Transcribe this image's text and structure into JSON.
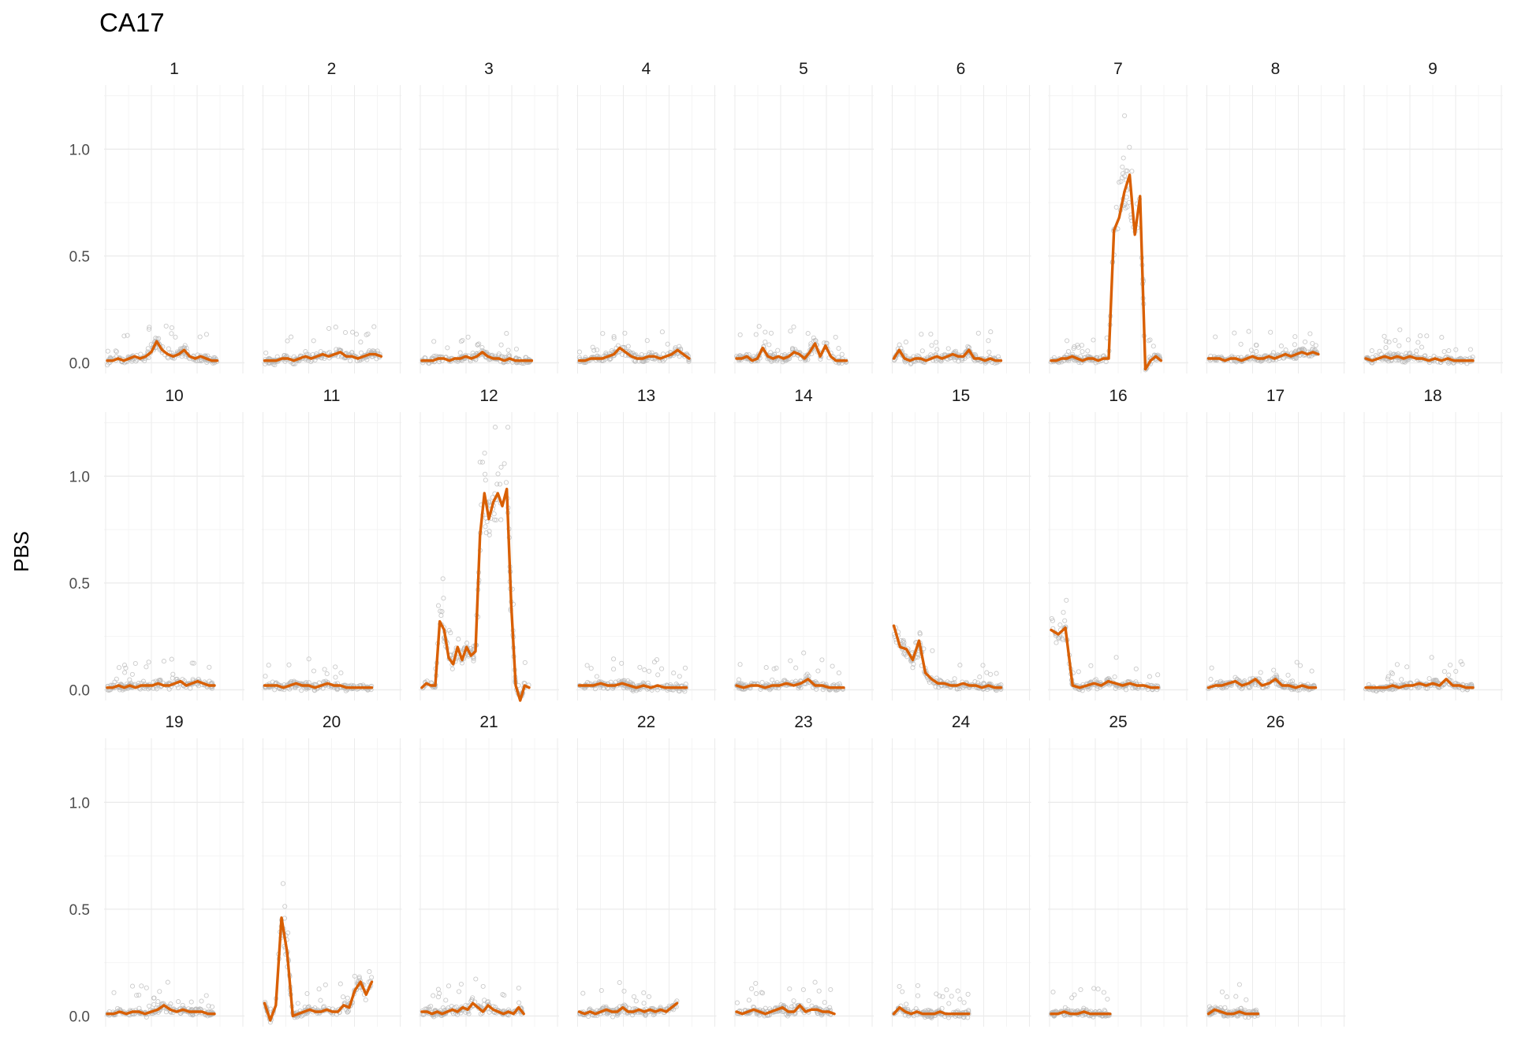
{
  "chart_data": {
    "type": "line",
    "title": "CA17",
    "xlabel": "",
    "ylabel": "PBS",
    "ylim": [
      -0.05,
      1.3
    ],
    "y_ticks": [
      0.0,
      0.5,
      1.0
    ],
    "y_tick_labels": [
      "0.0",
      "0.5",
      "1.0"
    ],
    "x_tick_labels_shown": false,
    "grid": true,
    "legend": "none",
    "layout": {
      "columns": 9,
      "rows": 3,
      "shared_y": true,
      "x_tick_labels_shown": false
    },
    "colors": {
      "line": "#d95f02",
      "points": "#b8b8b8",
      "grid_major": "#ebebeb",
      "grid_minor": "#f4f4f4"
    },
    "panels": [
      {
        "label": "1",
        "xmax": 0.82,
        "y": [
          0.01,
          0.01,
          0.02,
          0.01,
          0.02,
          0.03,
          0.02,
          0.03,
          0.05,
          0.1,
          0.06,
          0.04,
          0.03,
          0.04,
          0.06,
          0.03,
          0.02,
          0.03,
          0.02,
          0.01,
          0.01
        ]
      },
      {
        "label": "2",
        "xmax": 0.87,
        "y": [
          0.01,
          0.01,
          0.01,
          0.02,
          0.02,
          0.01,
          0.02,
          0.03,
          0.02,
          0.03,
          0.04,
          0.03,
          0.04,
          0.05,
          0.03,
          0.03,
          0.02,
          0.03,
          0.04,
          0.04,
          0.03
        ]
      },
      {
        "label": "3",
        "xmax": 0.82,
        "y": [
          0.01,
          0.01,
          0.01,
          0.02,
          0.02,
          0.01,
          0.02,
          0.02,
          0.03,
          0.02,
          0.03,
          0.05,
          0.03,
          0.02,
          0.02,
          0.01,
          0.02,
          0.01,
          0.01,
          0.01,
          0.01
        ]
      },
      {
        "label": "4",
        "xmax": 0.82,
        "y": [
          0.01,
          0.01,
          0.02,
          0.02,
          0.02,
          0.03,
          0.04,
          0.07,
          0.05,
          0.03,
          0.02,
          0.02,
          0.03,
          0.03,
          0.02,
          0.03,
          0.04,
          0.06,
          0.04,
          0.02
        ]
      },
      {
        "label": "5",
        "xmax": 0.82,
        "y": [
          0.02,
          0.02,
          0.03,
          0.01,
          0.02,
          0.07,
          0.03,
          0.02,
          0.03,
          0.02,
          0.03,
          0.05,
          0.04,
          0.02,
          0.05,
          0.09,
          0.03,
          0.08,
          0.03,
          0.01,
          0.01,
          0.01
        ]
      },
      {
        "label": "6",
        "xmax": 0.8,
        "y": [
          0.02,
          0.06,
          0.02,
          0.01,
          0.02,
          0.02,
          0.01,
          0.02,
          0.03,
          0.02,
          0.03,
          0.04,
          0.03,
          0.03,
          0.06,
          0.02,
          0.02,
          0.01,
          0.02,
          0.01,
          0.01
        ]
      },
      {
        "label": "7",
        "xmax": 0.82,
        "y": [
          0.01,
          0.01,
          0.02,
          0.02,
          0.03,
          0.02,
          0.01,
          0.02,
          0.02,
          0.01,
          0.02,
          0.02,
          0.62,
          0.68,
          0.8,
          0.88,
          0.6,
          0.78,
          -0.03,
          0.01,
          0.03,
          0.01
        ]
      },
      {
        "label": "8",
        "xmax": 0.82,
        "y": [
          0.02,
          0.02,
          0.02,
          0.01,
          0.02,
          0.02,
          0.01,
          0.02,
          0.03,
          0.02,
          0.02,
          0.03,
          0.02,
          0.03,
          0.04,
          0.03,
          0.04,
          0.05,
          0.04,
          0.05,
          0.04
        ]
      },
      {
        "label": "9",
        "xmax": 0.8,
        "y": [
          0.02,
          0.01,
          0.02,
          0.03,
          0.02,
          0.03,
          0.02,
          0.03,
          0.02,
          0.02,
          0.01,
          0.02,
          0.01,
          0.02,
          0.01,
          0.01,
          0.01,
          0.01
        ]
      },
      {
        "label": "10",
        "xmax": 0.8,
        "y": [
          0.01,
          0.01,
          0.02,
          0.01,
          0.02,
          0.01,
          0.02,
          0.02,
          0.02,
          0.03,
          0.02,
          0.02,
          0.03,
          0.04,
          0.02,
          0.03,
          0.04,
          0.03,
          0.02,
          0.02
        ]
      },
      {
        "label": "11",
        "xmax": 0.8,
        "y": [
          0.02,
          0.02,
          0.02,
          0.01,
          0.02,
          0.03,
          0.02,
          0.02,
          0.01,
          0.02,
          0.03,
          0.02,
          0.02,
          0.01,
          0.01,
          0.01,
          0.01,
          0.01
        ]
      },
      {
        "label": "12",
        "xmax": 0.8,
        "y": [
          0.01,
          0.03,
          0.02,
          0.02,
          0.32,
          0.28,
          0.15,
          0.12,
          0.2,
          0.14,
          0.2,
          0.16,
          0.18,
          0.72,
          0.92,
          0.8,
          0.88,
          0.92,
          0.86,
          0.94,
          0.4,
          0.02,
          -0.05,
          0.02,
          0.01
        ]
      },
      {
        "label": "13",
        "xmax": 0.8,
        "y": [
          0.02,
          0.02,
          0.02,
          0.03,
          0.02,
          0.02,
          0.03,
          0.02,
          0.01,
          0.02,
          0.01,
          0.02,
          0.01,
          0.01,
          0.01,
          0.01
        ]
      },
      {
        "label": "14",
        "xmax": 0.8,
        "y": [
          0.02,
          0.01,
          0.02,
          0.02,
          0.01,
          0.02,
          0.02,
          0.03,
          0.02,
          0.03,
          0.05,
          0.02,
          0.02,
          0.01,
          0.01,
          0.01
        ]
      },
      {
        "label": "15",
        "xmax": 0.8,
        "y": [
          0.3,
          0.2,
          0.19,
          0.14,
          0.23,
          0.08,
          0.05,
          0.03,
          0.03,
          0.02,
          0.02,
          0.03,
          0.02,
          0.02,
          0.01,
          0.02,
          0.01,
          0.01
        ]
      },
      {
        "label": "16",
        "xmax": 0.8,
        "y": [
          0.28,
          0.26,
          0.29,
          0.02,
          0.01,
          0.02,
          0.03,
          0.02,
          0.04,
          0.03,
          0.02,
          0.03,
          0.02,
          0.02,
          0.01,
          0.01
        ]
      },
      {
        "label": "17",
        "xmax": 0.8,
        "y": [
          0.01,
          0.02,
          0.02,
          0.03,
          0.04,
          0.02,
          0.03,
          0.05,
          0.02,
          0.03,
          0.05,
          0.02,
          0.02,
          0.01,
          0.02,
          0.01,
          0.01
        ]
      },
      {
        "label": "18",
        "xmax": 0.8,
        "y": [
          0.01,
          0.01,
          0.01,
          0.01,
          0.02,
          0.01,
          0.02,
          0.02,
          0.03,
          0.02,
          0.03,
          0.02,
          0.05,
          0.02,
          0.02,
          0.01,
          0.01
        ]
      },
      {
        "label": "19",
        "xmax": 0.8,
        "y": [
          0.01,
          0.01,
          0.02,
          0.01,
          0.02,
          0.02,
          0.01,
          0.02,
          0.03,
          0.05,
          0.03,
          0.02,
          0.03,
          0.02,
          0.02,
          0.02,
          0.01,
          0.01
        ]
      },
      {
        "label": "20",
        "xmax": 0.8,
        "y": [
          0.06,
          -0.02,
          0.05,
          0.46,
          0.3,
          0.0,
          0.01,
          0.02,
          0.03,
          0.02,
          0.02,
          0.03,
          0.02,
          0.02,
          0.05,
          0.04,
          0.12,
          0.16,
          0.1,
          0.16
        ]
      },
      {
        "label": "21",
        "xmax": 0.76,
        "y": [
          0.02,
          0.02,
          0.01,
          0.02,
          0.01,
          0.02,
          0.03,
          0.02,
          0.04,
          0.03,
          0.06,
          0.04,
          0.02,
          0.05,
          0.03,
          0.02,
          0.01,
          0.02,
          0.01,
          0.04,
          0.01
        ]
      },
      {
        "label": "22",
        "xmax": 0.73,
        "y": [
          0.02,
          0.01,
          0.02,
          0.01,
          0.02,
          0.03,
          0.02,
          0.02,
          0.04,
          0.02,
          0.02,
          0.03,
          0.02,
          0.03,
          0.02,
          0.03,
          0.02,
          0.04,
          0.06
        ]
      },
      {
        "label": "23",
        "xmax": 0.73,
        "y": [
          0.02,
          0.01,
          0.02,
          0.03,
          0.02,
          0.01,
          0.02,
          0.03,
          0.04,
          0.02,
          0.02,
          0.05,
          0.02,
          0.03,
          0.03,
          0.02,
          0.02,
          0.01
        ]
      },
      {
        "label": "24",
        "xmax": 0.56,
        "y": [
          0.01,
          0.04,
          0.02,
          0.01,
          0.02,
          0.01,
          0.01,
          0.01,
          0.02,
          0.01,
          0.01,
          0.01,
          0.01,
          0.01
        ]
      },
      {
        "label": "25",
        "xmax": 0.44,
        "y": [
          0.01,
          0.01,
          0.02,
          0.01,
          0.01,
          0.02,
          0.01,
          0.01,
          0.01,
          0.01
        ]
      },
      {
        "label": "26",
        "xmax": 0.37,
        "y": [
          0.01,
          0.03,
          0.02,
          0.01,
          0.01,
          0.02,
          0.01,
          0.01,
          0.01
        ]
      }
    ]
  }
}
